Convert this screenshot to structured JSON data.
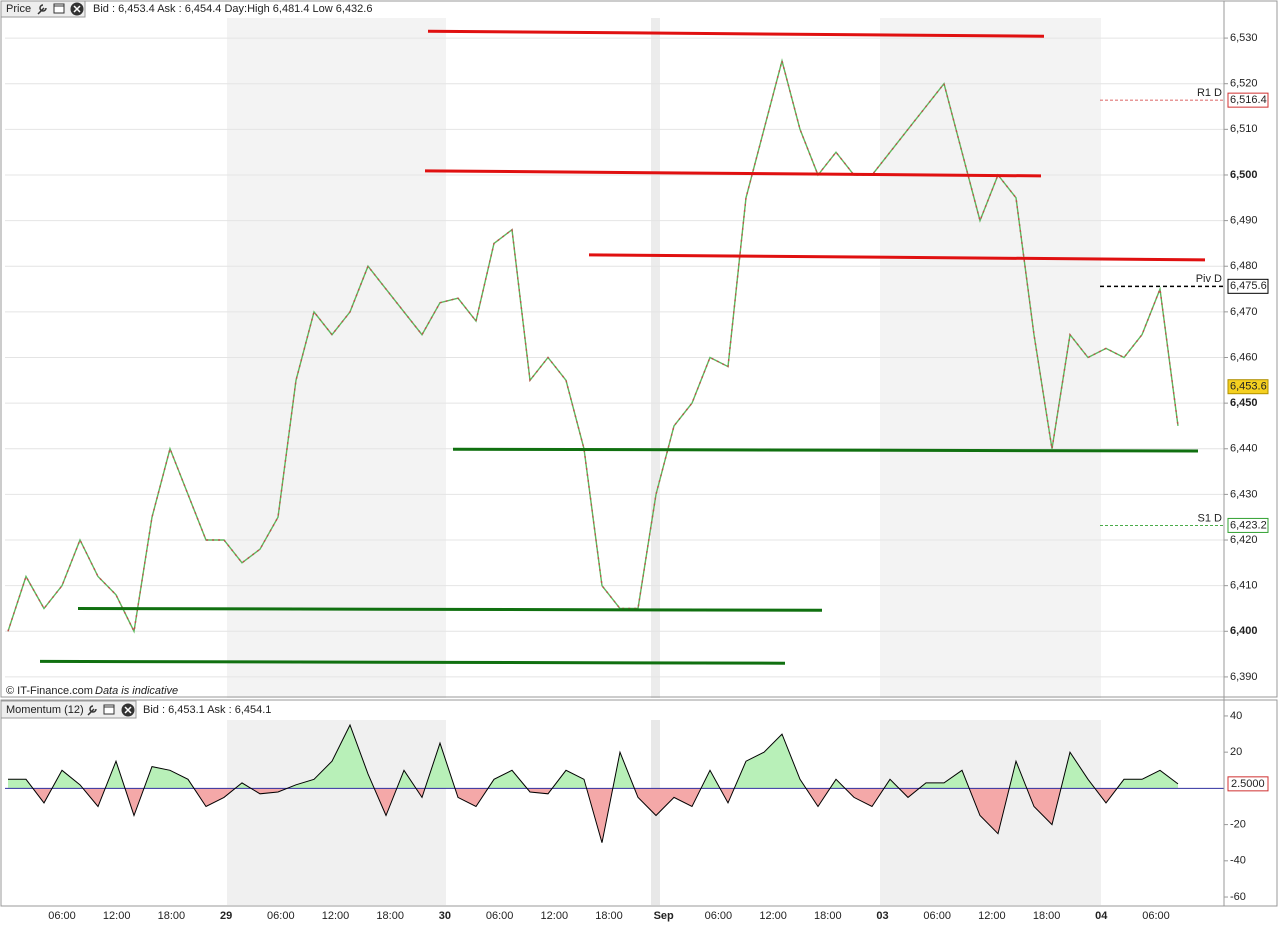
{
  "header": {
    "price_title": "Price",
    "price_quote": "Bid : 6,453.4 Ask : 6,454.4 Day:High 6,481.4 Low 6,432.6",
    "credit": "© IT-Finance.com",
    "disclaimer": "Data is indicative",
    "momentum_title": "Momentum (12)",
    "momentum_quote": "Bid : 6,453.1 Ask : 6,454.1"
  },
  "chart_data": [
    {
      "type": "line",
      "name": "price",
      "xticks": [
        "06:00",
        "12:00",
        "18:00",
        "29",
        "06:00",
        "12:00",
        "18:00",
        "30",
        "06:00",
        "12:00",
        "18:00",
        "Sep",
        "06:00",
        "12:00",
        "18:00",
        "03",
        "06:00",
        "12:00",
        "18:00",
        "04",
        "06:00"
      ],
      "series": [
        {
          "name": "Price",
          "color": "#5cb85c",
          "color2": "#c0504d",
          "values": [
            6400,
            6412,
            6405,
            6410,
            6420,
            6412,
            6408,
            6400,
            6425,
            6440,
            6430,
            6420,
            6420,
            6415,
            6418,
            6425,
            6455,
            6470,
            6465,
            6470,
            6480,
            6475,
            6470,
            6465,
            6472,
            6473,
            6468,
            6485,
            6488,
            6455,
            6460,
            6455,
            6440,
            6410,
            6405,
            6405,
            6430,
            6445,
            6450,
            6460,
            6458,
            6495,
            6510,
            6525,
            6510,
            6500,
            6505,
            6500,
            6500,
            6505,
            6510,
            6515,
            6520,
            6505,
            6490,
            6500,
            6495,
            6465,
            6440,
            6465,
            6460,
            6462,
            6460,
            6465,
            6475,
            6445
          ]
        }
      ],
      "ylim": [
        6385.6,
        6534.4
      ],
      "yticks": [
        {
          "value": 6390,
          "label": "6,390"
        },
        {
          "value": 6400,
          "label": "6,400"
        },
        {
          "value": 6410,
          "label": "6,410"
        },
        {
          "value": 6420,
          "label": "6,420"
        },
        {
          "value": 6430,
          "label": "6,430"
        },
        {
          "value": 6440,
          "label": "6,440"
        },
        {
          "value": 6450,
          "label": "6,450"
        },
        {
          "value": 6460,
          "label": "6,460"
        },
        {
          "value": 6470,
          "label": "6,470"
        },
        {
          "value": 6480,
          "label": "6,480"
        },
        {
          "value": 6490,
          "label": "6,490"
        },
        {
          "value": 6500,
          "label": "6,500"
        },
        {
          "value": 6510,
          "label": "6,510"
        },
        {
          "value": 6520,
          "label": "6,520"
        },
        {
          "value": 6530,
          "label": "6,530"
        }
      ],
      "grid": true,
      "trend_lines": [
        {
          "color": "#e01010",
          "values": [
            6531.5,
            6530.4
          ]
        },
        {
          "color": "#e01010",
          "values": [
            6500.9,
            6499.8
          ]
        },
        {
          "color": "#e01010",
          "values": [
            6482.5,
            6481.4
          ]
        },
        {
          "color": "#107010",
          "values": [
            6439.9,
            6439.5
          ]
        },
        {
          "color": "#107010",
          "values": [
            6405.0,
            6404.6
          ]
        },
        {
          "color": "#107010",
          "values": [
            6393.4,
            6393.0
          ]
        }
      ],
      "pivots": [
        {
          "name": "R1 D",
          "value": 6516.4,
          "label": "6,516.4",
          "color": "#d03030"
        },
        {
          "name": "Piv D",
          "value": 6475.6,
          "label": "6,475.6",
          "color": "#000000"
        },
        {
          "name": "S1 D",
          "value": 6423.2,
          "label": "6,423.2",
          "color": "#30a030"
        }
      ],
      "last": {
        "value": 6453.6,
        "label": "6,453.6",
        "color": "#f5d020"
      }
    },
    {
      "type": "area",
      "name": "momentum",
      "series": [
        {
          "name": "Momentum (12)",
          "color": "#000000",
          "up_color": "#b8f0b8",
          "down_color": "#f4a8a8",
          "values": [
            5,
            5,
            -8,
            10,
            2,
            -10,
            15,
            -15,
            12,
            10,
            5,
            -10,
            -5,
            3,
            -3,
            -2,
            2,
            5,
            15,
            35,
            8,
            -15,
            10,
            -5,
            25,
            -5,
            -10,
            5,
            10,
            -2,
            -3,
            10,
            5,
            -30,
            20,
            -5,
            -15,
            -5,
            -10,
            10,
            -8,
            15,
            20,
            30,
            5,
            -10,
            5,
            -5,
            -10,
            5,
            -5,
            3,
            3,
            10,
            -15,
            -25,
            15,
            -10,
            -20,
            20,
            5,
            -8,
            5,
            5,
            10,
            2.5
          ]
        }
      ],
      "ylim": [
        -64.4,
        47.7
      ],
      "yticks": [
        40,
        20,
        -20,
        -40,
        -60
      ],
      "last": {
        "value": 2.5,
        "label": "2.5000",
        "color": "#d03030"
      }
    }
  ]
}
